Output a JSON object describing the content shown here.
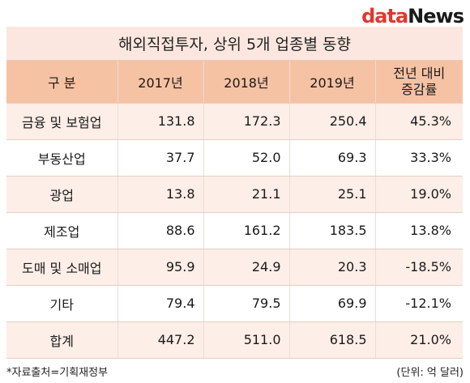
{
  "brand": {
    "part1": "data",
    "part2": "News"
  },
  "title": "해외직접투자, 상위 5개 업종별 동향",
  "headers": [
    "구 분",
    "2017년",
    "2018년",
    "2019년",
    "전년 대비",
    "증감률"
  ],
  "rows": [
    {
      "category": "금융 및 보험업",
      "y2017": "131.8",
      "y2018": "172.3",
      "y2019": "250.4",
      "change": "45.3%"
    },
    {
      "category": "부동산업",
      "y2017": "37.7",
      "y2018": "52.0",
      "y2019": "69.3",
      "change": "33.3%"
    },
    {
      "category": "광업",
      "y2017": "13.8",
      "y2018": "21.1",
      "y2019": "25.1",
      "change": "19.0%"
    },
    {
      "category": "제조업",
      "y2017": "88.6",
      "y2018": "161.2",
      "y2019": "183.5",
      "change": "13.8%"
    },
    {
      "category": "도매 및 소매업",
      "y2017": "95.9",
      "y2018": "24.9",
      "y2019": "20.3",
      "change": "-18.5%"
    },
    {
      "category": "기타",
      "y2017": "79.4",
      "y2018": "79.5",
      "y2019": "69.9",
      "change": "-12.1%"
    },
    {
      "category": "합계",
      "y2017": "447.2",
      "y2018": "511.0",
      "y2019": "618.5",
      "change": "21.0%"
    }
  ],
  "footer": {
    "source": "*자료출처=기획재정부",
    "unit": "(단위: 억 달러)"
  },
  "colors": {
    "title_bg": "#fbe7df",
    "header_bg": "#f6c2a4",
    "row_alt": "#fdeee7",
    "brand_red": "#e2372f"
  }
}
